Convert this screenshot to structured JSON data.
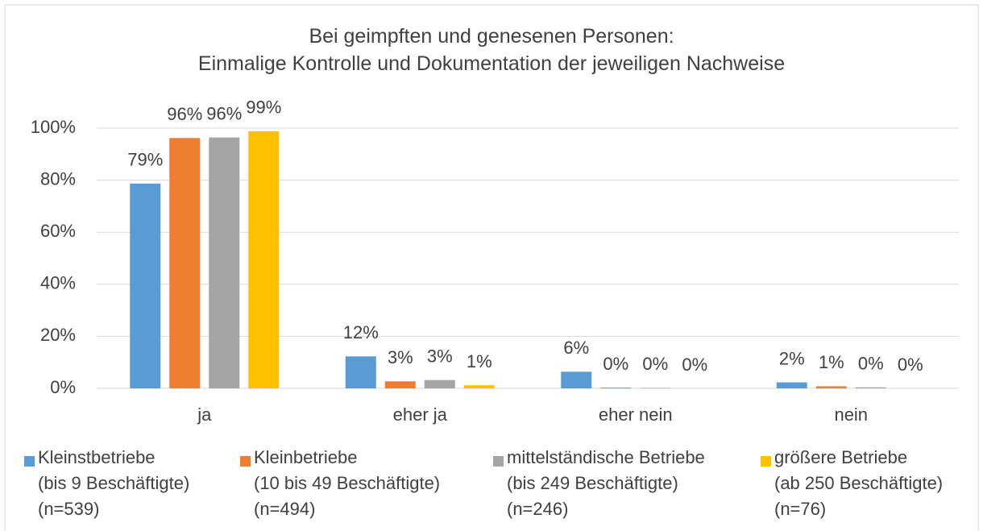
{
  "chart_data": {
    "type": "bar",
    "title": "Bei geimpften und genesenen Personen:\nEinmalige Kontrolle und Dokumentation der jeweiligen Nachweise",
    "categories": [
      "ja",
      "eher ja",
      "eher nein",
      "nein"
    ],
    "series": [
      {
        "name": "Kleinstbetriebe\n(bis 9 Beschäftigte)\n(n=539)",
        "color": "#5b9bd5",
        "values": [
          78.7,
          12.3,
          6.4,
          2.3
        ],
        "value_labels": [
          "79%",
          "12%",
          "6%",
          "2%"
        ]
      },
      {
        "name": "Kleinbetriebe\n(10 bis 49 Beschäftigte)\n(n=494)",
        "color": "#ed7d31",
        "values": [
          96.2,
          2.7,
          0.3,
          0.8
        ],
        "value_labels": [
          "96%",
          "3%",
          "0%",
          "1%"
        ]
      },
      {
        "name": "mittelständische Betriebe\n(bis 249 Beschäftigte)\n(n=246)",
        "color": "#a5a5a5",
        "values": [
          96.4,
          3.2,
          0.2,
          0.4
        ],
        "value_labels": [
          "96%",
          "3%",
          "0%",
          "0%"
        ]
      },
      {
        "name": "größere Betriebe\n(ab 250 Beschäftigte)\n(n=76)",
        "color": "#ffc000",
        "values": [
          98.8,
          1.2,
          0.0,
          0.0
        ],
        "value_labels": [
          "99%",
          "1%",
          "0%",
          "0%"
        ]
      }
    ],
    "ylim": [
      0,
      100
    ],
    "yticks": [
      {
        "value": 0,
        "label": "0%"
      },
      {
        "value": 20,
        "label": "20%"
      },
      {
        "value": 40,
        "label": "40%"
      },
      {
        "value": 60,
        "label": "60%"
      },
      {
        "value": 80,
        "label": "80%"
      },
      {
        "value": 100,
        "label": "100%"
      }
    ],
    "grid": true,
    "legend": "bottom"
  }
}
